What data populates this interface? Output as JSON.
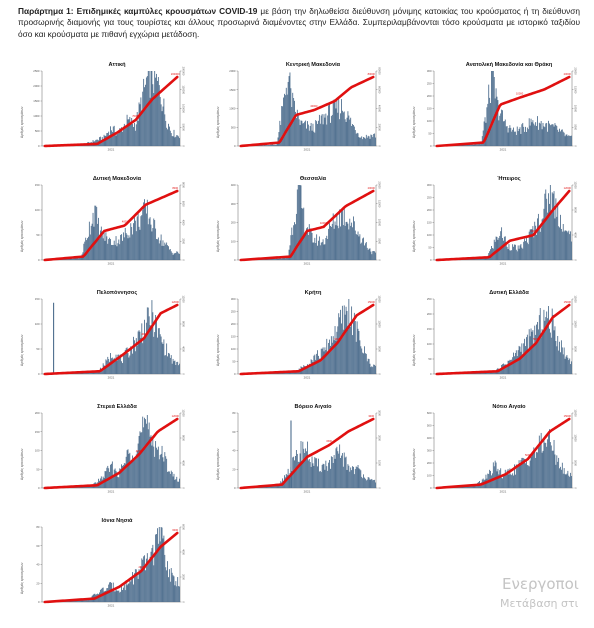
{
  "caption": {
    "bold": "Παράρτημα 1: Επιδημικές καμπύλες κρουσμάτων COVID-19",
    "text": " με βάση την δηλωθείσα διεύθυνση μόνιμης κατοικίας του κρούσματος ή τη διεύθυνση προσωρινής διαμονής για τους τουρίστες και άλλους προσωρινά διαμένοντες στην Ελλάδα. Συμπεριλαμβάνονται τόσο κρούσματα με ιστορικό ταξιδίου όσο και κρούσματα με πιθανή εγχώρια μετάδοση."
  },
  "watermark": {
    "line1": "Ενεργοποι",
    "line2": "Μετάβαση στι"
  },
  "colors": {
    "bars": "#4e6e8e",
    "curve": "#e01010",
    "axis": "#666666",
    "text": "#222222"
  },
  "chart_data": [
    {
      "type": "bar",
      "title": "Αττική",
      "ylabel": "Αριθμός κρουσμάτων",
      "xtick": "2021",
      "ylim": [
        0,
        2500
      ],
      "yticks": [
        0,
        500,
        1000,
        1500,
        2000,
        2500
      ],
      "y2ticks": [
        0,
        50000,
        100000,
        150000,
        200000
      ],
      "cum_start": "",
      "cum_mid": "70000",
      "cum_end": "200000",
      "profile": [
        [
          0.02,
          0
        ],
        [
          0.3,
          0.02
        ],
        [
          0.45,
          0.12
        ],
        [
          0.5,
          0.25
        ],
        [
          0.55,
          0.18
        ],
        [
          0.62,
          0.35
        ],
        [
          0.68,
          0.3
        ],
        [
          0.76,
          0.9
        ],
        [
          0.8,
          1.0
        ],
        [
          0.86,
          0.78
        ],
        [
          0.9,
          0.4
        ],
        [
          0.94,
          0.2
        ],
        [
          0.98,
          0.15
        ]
      ],
      "cum": [
        [
          0.02,
          0
        ],
        [
          0.4,
          0.03
        ],
        [
          0.55,
          0.2
        ],
        [
          0.68,
          0.38
        ],
        [
          0.8,
          0.68
        ],
        [
          0.98,
          1
        ]
      ]
    },
    {
      "type": "bar",
      "title": "Κεντρική Μακεδονία",
      "ylabel": "Αριθμός κρουσμάτων",
      "xtick": "2021",
      "ylim": [
        0,
        2000
      ],
      "yticks": [
        0,
        500,
        1000,
        1500,
        2000
      ],
      "y2ticks": [
        0,
        20000,
        40000,
        60000,
        80000
      ],
      "cum_start": "",
      "cum_mid": "40000",
      "cum_end": "80000",
      "profile": [
        [
          0.02,
          0
        ],
        [
          0.28,
          0.02
        ],
        [
          0.33,
          0.6
        ],
        [
          0.36,
          1.0
        ],
        [
          0.4,
          0.55
        ],
        [
          0.46,
          0.3
        ],
        [
          0.55,
          0.25
        ],
        [
          0.62,
          0.4
        ],
        [
          0.7,
          0.5
        ],
        [
          0.76,
          0.55
        ],
        [
          0.83,
          0.3
        ],
        [
          0.9,
          0.12
        ],
        [
          0.98,
          0.15
        ]
      ],
      "cum": [
        [
          0.02,
          0
        ],
        [
          0.3,
          0.05
        ],
        [
          0.42,
          0.45
        ],
        [
          0.55,
          0.52
        ],
        [
          0.7,
          0.65
        ],
        [
          0.82,
          0.85
        ],
        [
          0.98,
          1
        ]
      ]
    },
    {
      "type": "bar",
      "title": "Ανατολική Μακεδονία και Θράκη",
      "ylabel": "Αριθμός κρουσμάτων",
      "xtick": "2021",
      "ylim": [
        0,
        300
      ],
      "yticks": [
        0,
        50,
        100,
        150,
        200,
        250,
        300
      ],
      "y2ticks": [
        0,
        5000,
        10000,
        15000,
        20000
      ],
      "cum_start": "",
      "cum_mid": "10000",
      "cum_end": "20000",
      "profile": [
        [
          0.02,
          0
        ],
        [
          0.34,
          0.03
        ],
        [
          0.4,
          0.7
        ],
        [
          0.42,
          1.0
        ],
        [
          0.46,
          0.55
        ],
        [
          0.52,
          0.3
        ],
        [
          0.58,
          0.2
        ],
        [
          0.65,
          0.25
        ],
        [
          0.72,
          0.35
        ],
        [
          0.8,
          0.3
        ],
        [
          0.88,
          0.25
        ],
        [
          0.98,
          0.12
        ]
      ],
      "cum": [
        [
          0.02,
          0
        ],
        [
          0.36,
          0.05
        ],
        [
          0.48,
          0.6
        ],
        [
          0.62,
          0.7
        ],
        [
          0.8,
          0.82
        ],
        [
          0.98,
          1
        ]
      ]
    },
    {
      "type": "bar",
      "title": "Δυτική Μακεδονία",
      "ylabel": "Αριθμός κρουσμάτων",
      "xtick": "2021",
      "ylim": [
        0,
        150
      ],
      "yticks": [
        0,
        50,
        100,
        150
      ],
      "y2ticks": [
        0,
        2000,
        4000,
        6000,
        8000
      ],
      "cum_start": "",
      "cum_mid": "4000",
      "cum_end": "8000",
      "profile": [
        [
          0.02,
          0
        ],
        [
          0.28,
          0.03
        ],
        [
          0.34,
          0.45
        ],
        [
          0.38,
          0.7
        ],
        [
          0.42,
          0.4
        ],
        [
          0.5,
          0.25
        ],
        [
          0.58,
          0.3
        ],
        [
          0.64,
          0.45
        ],
        [
          0.7,
          0.55
        ],
        [
          0.76,
          0.7
        ],
        [
          0.8,
          0.5
        ],
        [
          0.86,
          0.3
        ],
        [
          0.95,
          0.1
        ]
      ],
      "cum": [
        [
          0.02,
          0
        ],
        [
          0.3,
          0.05
        ],
        [
          0.45,
          0.42
        ],
        [
          0.6,
          0.5
        ],
        [
          0.75,
          0.8
        ],
        [
          0.98,
          1
        ]
      ]
    },
    {
      "type": "bar",
      "title": "Θεσσαλία",
      "ylabel": "Αριθμός κρουσμάτων",
      "xtick": "2021",
      "ylim": [
        0,
        400
      ],
      "yticks": [
        0,
        100,
        200,
        300,
        400
      ],
      "y2ticks": [
        0,
        5000,
        10000,
        15000,
        20000
      ],
      "cum_start": "",
      "cum_mid": "10000",
      "cum_end": "20000",
      "profile": [
        [
          0.02,
          0
        ],
        [
          0.36,
          0.03
        ],
        [
          0.4,
          0.55
        ],
        [
          0.44,
          1.0
        ],
        [
          0.48,
          0.55
        ],
        [
          0.54,
          0.3
        ],
        [
          0.62,
          0.25
        ],
        [
          0.7,
          0.55
        ],
        [
          0.76,
          0.65
        ],
        [
          0.82,
          0.55
        ],
        [
          0.9,
          0.3
        ],
        [
          0.98,
          0.1
        ]
      ],
      "cum": [
        [
          0.02,
          0
        ],
        [
          0.38,
          0.05
        ],
        [
          0.5,
          0.42
        ],
        [
          0.62,
          0.48
        ],
        [
          0.78,
          0.78
        ],
        [
          0.98,
          1
        ]
      ]
    },
    {
      "type": "bar",
      "title": "Ήπειρος",
      "ylabel": "Αριθμός κρουσμάτων",
      "xtick": "2021",
      "ylim": [
        0,
        300
      ],
      "yticks": [
        0,
        50,
        100,
        150,
        200,
        250,
        300
      ],
      "y2ticks": [
        0,
        4000,
        8000,
        12000
      ],
      "cum_start": "",
      "cum_mid": "6000",
      "cum_end": "12000",
      "profile": [
        [
          0.02,
          0
        ],
        [
          0.38,
          0.03
        ],
        [
          0.44,
          0.25
        ],
        [
          0.48,
          0.4
        ],
        [
          0.54,
          0.2
        ],
        [
          0.62,
          0.15
        ],
        [
          0.7,
          0.35
        ],
        [
          0.78,
          0.6
        ],
        [
          0.84,
          0.95
        ],
        [
          0.9,
          0.7
        ],
        [
          0.96,
          0.35
        ]
      ],
      "cum": [
        [
          0.02,
          0
        ],
        [
          0.4,
          0.04
        ],
        [
          0.55,
          0.28
        ],
        [
          0.72,
          0.36
        ],
        [
          0.86,
          0.72
        ],
        [
          0.98,
          1
        ]
      ]
    },
    {
      "type": "bar",
      "title": "Πελοπόννησος",
      "ylabel": "Αριθμός κρουσμάτων",
      "xtick": "2021",
      "ylim": [
        0,
        150
      ],
      "yticks": [
        0,
        50,
        100,
        150
      ],
      "y2ticks": [
        0,
        4000,
        8000,
        12000
      ],
      "cum_start": "",
      "cum_mid": "4000",
      "cum_end": "12000",
      "spike": [
        0.08,
        0.95
      ],
      "profile": [
        [
          0.02,
          0
        ],
        [
          0.4,
          0.03
        ],
        [
          0.46,
          0.15
        ],
        [
          0.52,
          0.3
        ],
        [
          0.58,
          0.2
        ],
        [
          0.66,
          0.4
        ],
        [
          0.74,
          0.65
        ],
        [
          0.8,
          0.8
        ],
        [
          0.85,
          0.55
        ],
        [
          0.9,
          0.35
        ],
        [
          0.96,
          0.15
        ]
      ],
      "cum": [
        [
          0.02,
          0
        ],
        [
          0.42,
          0.04
        ],
        [
          0.6,
          0.3
        ],
        [
          0.74,
          0.52
        ],
        [
          0.86,
          0.88
        ],
        [
          0.98,
          1
        ]
      ]
    },
    {
      "type": "bar",
      "title": "Κρήτη",
      "ylabel": "Αριθμός κρουσμάτων",
      "xtick": "2021",
      "ylim": [
        0,
        300
      ],
      "yticks": [
        0,
        50,
        100,
        150,
        200,
        250,
        300
      ],
      "y2ticks": [
        0,
        5000,
        10000,
        15000
      ],
      "cum_start": "",
      "cum_mid": "5000",
      "cum_end": "15000",
      "profile": [
        [
          0.02,
          0
        ],
        [
          0.42,
          0.03
        ],
        [
          0.5,
          0.15
        ],
        [
          0.56,
          0.25
        ],
        [
          0.62,
          0.3
        ],
        [
          0.68,
          0.5
        ],
        [
          0.74,
          0.7
        ],
        [
          0.8,
          0.9
        ],
        [
          0.86,
          0.6
        ],
        [
          0.92,
          0.3
        ],
        [
          0.97,
          0.12
        ]
      ],
      "cum": [
        [
          0.02,
          0
        ],
        [
          0.44,
          0.04
        ],
        [
          0.6,
          0.2
        ],
        [
          0.72,
          0.45
        ],
        [
          0.86,
          0.85
        ],
        [
          0.98,
          1
        ]
      ]
    },
    {
      "type": "bar",
      "title": "Δυτική Ελλάδα",
      "ylabel": "Αριθμός κρουσμάτων",
      "xtick": "2021",
      "ylim": [
        0,
        250
      ],
      "yticks": [
        0,
        50,
        100,
        150,
        200,
        250
      ],
      "y2ticks": [
        0,
        5000,
        10000,
        15000
      ],
      "cum_start": "",
      "cum_mid": "5000",
      "cum_end": "15000",
      "profile": [
        [
          0.02,
          0
        ],
        [
          0.44,
          0.03
        ],
        [
          0.5,
          0.12
        ],
        [
          0.56,
          0.2
        ],
        [
          0.62,
          0.35
        ],
        [
          0.68,
          0.45
        ],
        [
          0.74,
          0.6
        ],
        [
          0.8,
          0.8
        ],
        [
          0.86,
          0.7
        ],
        [
          0.92,
          0.4
        ],
        [
          0.98,
          0.2
        ]
      ],
      "cum": [
        [
          0.02,
          0
        ],
        [
          0.46,
          0.04
        ],
        [
          0.62,
          0.22
        ],
        [
          0.74,
          0.45
        ],
        [
          0.86,
          0.82
        ],
        [
          0.98,
          1
        ]
      ]
    },
    {
      "type": "bar",
      "title": "Στερεά Ελλάδα",
      "ylabel": "Αριθμός κρουσμάτων",
      "xtick": "2021",
      "ylim": [
        0,
        200
      ],
      "yticks": [
        0,
        50,
        100,
        150,
        200
      ],
      "y2ticks": [
        0,
        4000,
        8000,
        12000
      ],
      "cum_start": "",
      "cum_mid": "4000",
      "cum_end": "12000",
      "profile": [
        [
          0.02,
          0
        ],
        [
          0.36,
          0.03
        ],
        [
          0.44,
          0.15
        ],
        [
          0.5,
          0.3
        ],
        [
          0.56,
          0.2
        ],
        [
          0.62,
          0.45
        ],
        [
          0.68,
          0.6
        ],
        [
          0.74,
          0.85
        ],
        [
          0.8,
          0.7
        ],
        [
          0.86,
          0.5
        ],
        [
          0.92,
          0.3
        ],
        [
          0.97,
          0.12
        ]
      ],
      "cum": [
        [
          0.02,
          0
        ],
        [
          0.4,
          0.04
        ],
        [
          0.56,
          0.22
        ],
        [
          0.7,
          0.48
        ],
        [
          0.84,
          0.82
        ],
        [
          0.98,
          1
        ]
      ]
    },
    {
      "type": "bar",
      "title": "Βόρειο Αιγαίο",
      "ylabel": "Αριθμός κρουσμάτων",
      "xtick": "2021",
      "ylim": [
        0,
        80
      ],
      "yticks": [
        0,
        20,
        40,
        60,
        80
      ],
      "y2ticks": [
        0,
        1000,
        2000,
        3000
      ],
      "cum_start": "",
      "cum_mid": "1500",
      "cum_end": "3000",
      "spike": [
        0.38,
        0.9
      ],
      "profile": [
        [
          0.02,
          0
        ],
        [
          0.3,
          0.05
        ],
        [
          0.42,
          0.4
        ],
        [
          0.48,
          0.6
        ],
        [
          0.54,
          0.35
        ],
        [
          0.6,
          0.3
        ],
        [
          0.68,
          0.35
        ],
        [
          0.74,
          0.5
        ],
        [
          0.8,
          0.3
        ],
        [
          0.88,
          0.25
        ],
        [
          0.96,
          0.1
        ]
      ],
      "cum": [
        [
          0.02,
          0
        ],
        [
          0.32,
          0.05
        ],
        [
          0.5,
          0.45
        ],
        [
          0.66,
          0.62
        ],
        [
          0.8,
          0.82
        ],
        [
          0.98,
          1
        ]
      ]
    },
    {
      "type": "bar",
      "title": "Νότιο Αιγαίο",
      "ylabel": "Αριθμός κρουσμάτων",
      "xtick": "2021",
      "ylim": [
        0,
        600
      ],
      "yticks": [
        0,
        100,
        200,
        300,
        400,
        500,
        600
      ],
      "y2ticks": [
        0,
        5000,
        10000,
        15000
      ],
      "cum_start": "",
      "cum_mid": "5000",
      "cum_end": "15000",
      "profile": [
        [
          0.02,
          0
        ],
        [
          0.3,
          0.04
        ],
        [
          0.38,
          0.15
        ],
        [
          0.44,
          0.3
        ],
        [
          0.5,
          0.18
        ],
        [
          0.58,
          0.25
        ],
        [
          0.64,
          0.35
        ],
        [
          0.7,
          0.45
        ],
        [
          0.76,
          0.55
        ],
        [
          0.82,
          0.7
        ],
        [
          0.88,
          0.5
        ],
        [
          0.95,
          0.2
        ]
      ],
      "cum": [
        [
          0.02,
          0
        ],
        [
          0.34,
          0.05
        ],
        [
          0.52,
          0.2
        ],
        [
          0.68,
          0.42
        ],
        [
          0.84,
          0.82
        ],
        [
          0.98,
          1
        ]
      ]
    },
    {
      "type": "bar",
      "title": "Ιόνια Νησιά",
      "ylabel": "Αριθμός κρουσμάτων",
      "xtick": "2021",
      "ylim": [
        0,
        80
      ],
      "yticks": [
        0,
        20,
        40,
        60,
        80
      ],
      "y2ticks": [
        0,
        2000,
        4000,
        6000
      ],
      "cum_start": "",
      "cum_mid": "2000",
      "cum_end": "6000",
      "profile": [
        [
          0.02,
          0
        ],
        [
          0.34,
          0.04
        ],
        [
          0.42,
          0.15
        ],
        [
          0.5,
          0.22
        ],
        [
          0.58,
          0.18
        ],
        [
          0.66,
          0.35
        ],
        [
          0.74,
          0.5
        ],
        [
          0.8,
          0.7
        ],
        [
          0.86,
          0.95
        ],
        [
          0.9,
          0.6
        ],
        [
          0.95,
          0.3
        ]
      ],
      "cum": [
        [
          0.02,
          0
        ],
        [
          0.38,
          0.05
        ],
        [
          0.56,
          0.22
        ],
        [
          0.72,
          0.45
        ],
        [
          0.86,
          0.8
        ],
        [
          0.98,
          1
        ]
      ]
    }
  ]
}
